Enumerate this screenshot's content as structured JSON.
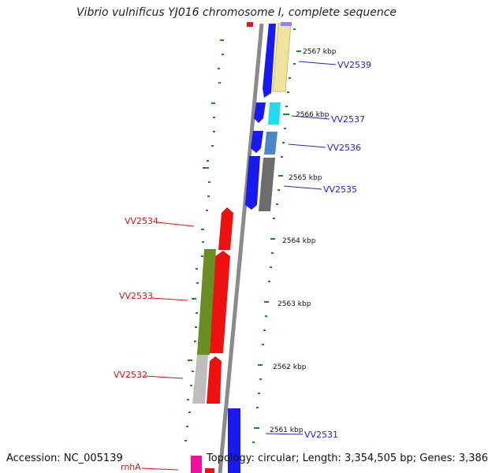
{
  "title": "Vibrio vulnificus YJ016 chromosome I, complete sequence",
  "footer": {
    "accession": "Accession: NC_005139",
    "summary": "Topology: circular; Length: 3,354,505 bp; Genes: 3,386"
  },
  "ticks": [
    "2567 kbp",
    "2566 kbp",
    "2565 kbp",
    "2564 kbp",
    "2563 kbp",
    "2562 kbp",
    "2561 kbp"
  ],
  "genes_forward": [
    {
      "label": "VV2539",
      "color": "#2222cc"
    },
    {
      "label": "VV2537",
      "color": "#2222cc"
    },
    {
      "label": "VV2536",
      "color": "#2222cc"
    },
    {
      "label": "VV2535",
      "color": "#2222cc"
    },
    {
      "label": "VV2531",
      "color": "#2222cc"
    }
  ],
  "genes_reverse": [
    {
      "label": "VV2534",
      "color": "#dd1111"
    },
    {
      "label": "VV2533",
      "color": "#dd1111"
    },
    {
      "label": "VV2532",
      "color": "#dd1111"
    },
    {
      "label": "rnhA",
      "color": "#dd1111"
    }
  ]
}
